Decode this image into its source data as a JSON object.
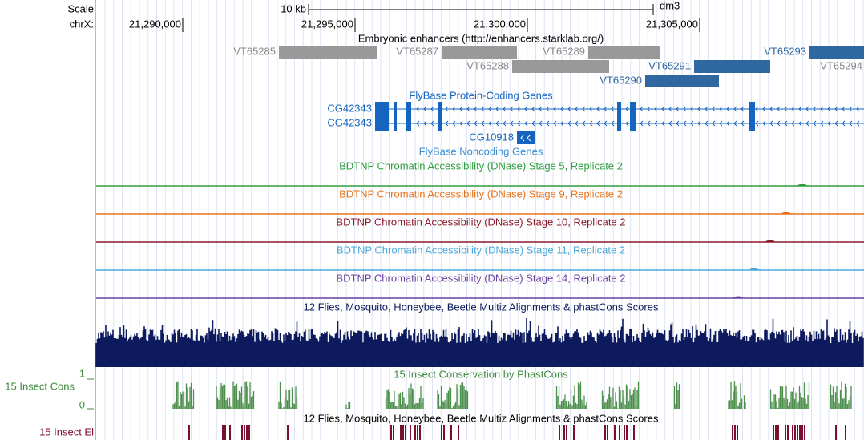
{
  "ruler": {
    "scale_label": "Scale",
    "chrom_label": "chrX:",
    "scale_bar": "10 kb",
    "assembly": "dm3",
    "ticks": [
      "21,290,000",
      "21,295,000",
      "21,300,000",
      "21,305,000"
    ]
  },
  "enhancers": {
    "title": "Embryonic enhancers (http://enhancers.starklab.org/)",
    "items": [
      "VT65285",
      "VT65287",
      "VT65289",
      "VT65293",
      "VT65288",
      "VT65291",
      "VT65294",
      "VT65290"
    ]
  },
  "genes": {
    "title": "FlyBase Protein-Coding Genes",
    "items": [
      "CG42343",
      "CG42343",
      "CG10918"
    ],
    "noncoding_title": "FlyBase Noncoding Genes"
  },
  "dnase": [
    "BDTNP Chromatin Accessibility (DNase) Stage 5, Replicate 2",
    "BDTNP Chromatin Accessibility (DNase) Stage 9, Replicate 2",
    "BDTNP Chromatin Accessibility (DNase) Stage 10, Replicate 2",
    "BDTNP Chromatin Accessibility (DNase) Stage 11, Replicate 2",
    "BDTNP Chromatin Accessibility (DNase) Stage 14, Replicate 2"
  ],
  "multiz": {
    "title": "12 Flies, Mosquito, Honeybee, Beetle Multiz Alignments & phastCons Scores"
  },
  "cons": {
    "title": "15 Insect Conservation by PhastCons",
    "side_label": "15 Insect Cons",
    "max_label": "1",
    "min_label": "0"
  },
  "elements": {
    "title": "12 Flies, Mosquito, Honeybee, Beetle Multiz Alignments & phastCons Scores",
    "side_label": "15 Insect El"
  }
}
